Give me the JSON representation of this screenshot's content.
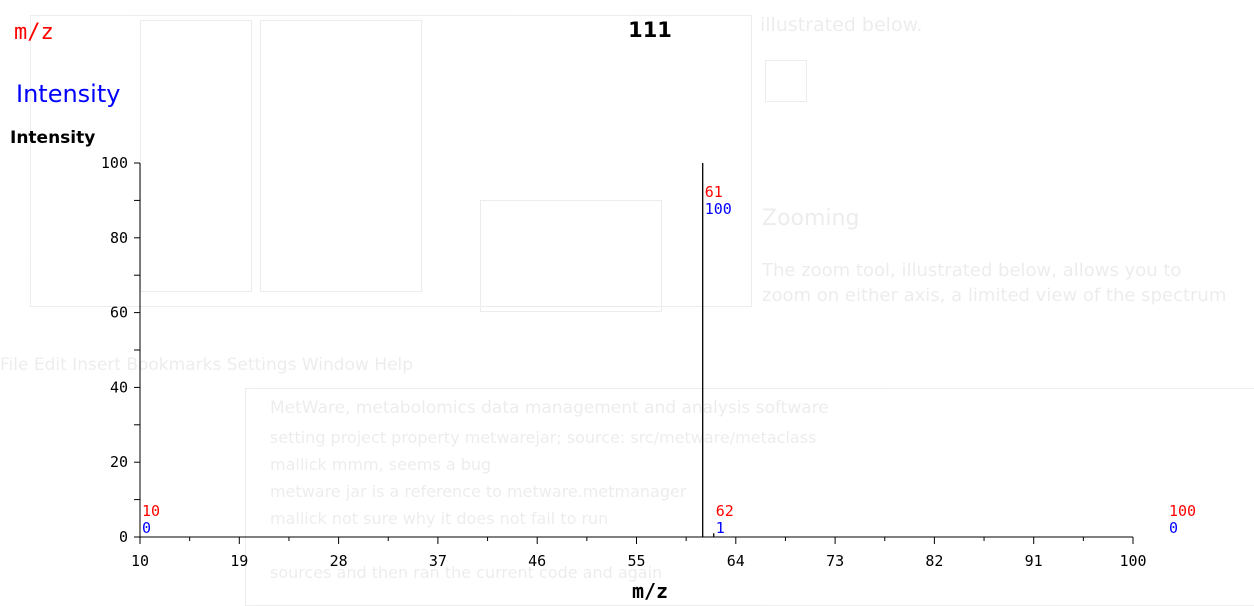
{
  "legend": {
    "mz_label": "m/z",
    "intensity_label": "Intensity"
  },
  "colors": {
    "mz": "#ff0000",
    "intensity": "#0000ff",
    "axis": "#000000"
  },
  "chart_data": {
    "type": "bar",
    "title": "111",
    "xlabel": "m/z",
    "ylabel": "Intensity",
    "xlim": [
      10,
      100
    ],
    "ylim": [
      0,
      100
    ],
    "x_ticks": [
      10,
      19,
      28,
      37,
      46,
      55,
      64,
      73,
      82,
      91,
      100
    ],
    "y_ticks": [
      0,
      20,
      40,
      60,
      80,
      100
    ],
    "grid": false,
    "peaks": [
      {
        "mz": 10,
        "intensity": 0,
        "mz_label": "10",
        "intensity_label": "0"
      },
      {
        "mz": 61,
        "intensity": 100,
        "mz_label": "61",
        "intensity_label": "100"
      },
      {
        "mz": 62,
        "intensity": 1,
        "mz_label": "62",
        "intensity_label": "1"
      },
      {
        "mz": 100,
        "intensity": 0,
        "mz_label": "100",
        "intensity_label": "0"
      }
    ]
  }
}
